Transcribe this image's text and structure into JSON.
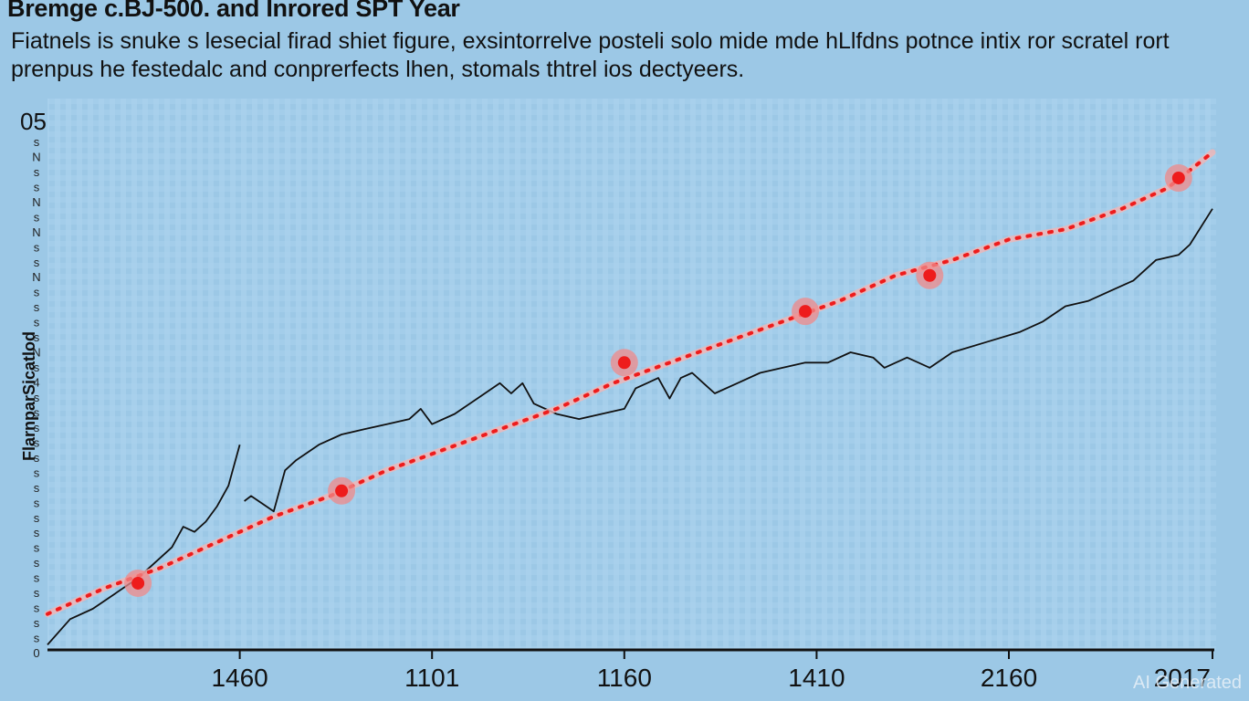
{
  "title": "Bremge c.BJ-500. and Inrored SPT Year",
  "subtitle": "Fiatnels is snuke s lesecial firad shiet figure, exsintorrelve posteli solo mide mde hLlfdns potnce intix ror scratel rort prenpus he festedalc and conprerfects lhen, stomals thtrel ios dectyeers.",
  "watermark": "AI Generated",
  "colors": {
    "background": "#9cc8e6",
    "line": "#111111",
    "trend": "#ee1c1c",
    "halo": "#f08a8a"
  },
  "chart_data": {
    "type": "line",
    "title": "Bremge c.BJ-500. and Inrored SPT Year",
    "ylabel": "FlarnparSicatlod",
    "ytick_top": "05",
    "ytick_glyphs": [
      "s",
      "N",
      "s",
      "s",
      "N",
      "s",
      "N",
      "s",
      "s",
      "N",
      "s",
      "s",
      "s",
      "s",
      "N",
      "s",
      "4",
      "s",
      "s",
      "s",
      "s",
      "s",
      "s",
      "s",
      "s",
      "s",
      "s",
      "s",
      "s",
      "s",
      "s",
      "s",
      "s",
      "s",
      "0"
    ],
    "xticks": [
      {
        "label": "1460",
        "x": 0.14
      },
      {
        "label": "1101",
        "x": 0.31
      },
      {
        "label": "1160",
        "x": 0.48
      },
      {
        "label": "1410",
        "x": 0.65
      },
      {
        "label": "2160",
        "x": 0.82
      },
      {
        "label": "2017",
        "x": 1.0
      }
    ],
    "xlim": [
      -0.03,
      1.0
    ],
    "ylim": [
      0,
      100
    ],
    "grid": true,
    "series": [
      {
        "style": "solid",
        "segments": [
          [
            [
              -0.03,
              1
            ],
            [
              -0.01,
              6
            ],
            [
              0.01,
              8
            ],
            [
              0.03,
              11
            ],
            [
              0.05,
              14
            ],
            [
              0.07,
              18
            ],
            [
              0.08,
              20
            ],
            [
              0.09,
              24
            ],
            [
              0.1,
              23
            ],
            [
              0.11,
              25
            ],
            [
              0.12,
              28
            ],
            [
              0.13,
              32
            ],
            [
              0.14,
              40
            ]
          ],
          [
            [
              0.144,
              29
            ],
            [
              0.15,
              30
            ],
            [
              0.17,
              27
            ],
            [
              0.18,
              35
            ],
            [
              0.19,
              37
            ],
            [
              0.21,
              40
            ],
            [
              0.23,
              42
            ],
            [
              0.25,
              43
            ],
            [
              0.27,
              44
            ],
            [
              0.29,
              45
            ],
            [
              0.3,
              47
            ],
            [
              0.31,
              44
            ],
            [
              0.33,
              46
            ],
            [
              0.35,
              49
            ],
            [
              0.37,
              52
            ],
            [
              0.38,
              50
            ],
            [
              0.39,
              52
            ],
            [
              0.4,
              48
            ],
            [
              0.42,
              46
            ],
            [
              0.44,
              45
            ],
            [
              0.46,
              46
            ],
            [
              0.48,
              47
            ],
            [
              0.49,
              51
            ],
            [
              0.5,
              52
            ],
            [
              0.51,
              53
            ],
            [
              0.52,
              49
            ],
            [
              0.53,
              53
            ],
            [
              0.54,
              54
            ],
            [
              0.55,
              52
            ],
            [
              0.56,
              50
            ],
            [
              0.58,
              52
            ],
            [
              0.6,
              54
            ],
            [
              0.62,
              55
            ],
            [
              0.64,
              56
            ],
            [
              0.66,
              56
            ],
            [
              0.68,
              58
            ],
            [
              0.7,
              57
            ],
            [
              0.71,
              55
            ],
            [
              0.73,
              57
            ],
            [
              0.75,
              55
            ],
            [
              0.77,
              58
            ],
            [
              0.8,
              60
            ],
            [
              0.83,
              62
            ],
            [
              0.85,
              64
            ],
            [
              0.87,
              67
            ],
            [
              0.89,
              68
            ],
            [
              0.91,
              70
            ],
            [
              0.93,
              72
            ],
            [
              0.95,
              76
            ],
            [
              0.97,
              77
            ],
            [
              0.98,
              79
            ],
            [
              1.0,
              86
            ]
          ]
        ]
      },
      {
        "style": "dotted",
        "segments": [
          [
            [
              -0.03,
              7
            ],
            [
              0.02,
              12
            ],
            [
              0.07,
              16
            ],
            [
              0.12,
              21
            ],
            [
              0.17,
              26
            ],
            [
              0.22,
              30
            ],
            [
              0.27,
              35
            ],
            [
              0.32,
              39
            ],
            [
              0.37,
              43
            ],
            [
              0.42,
              47
            ],
            [
              0.47,
              52
            ],
            [
              0.52,
              56
            ],
            [
              0.57,
              60
            ],
            [
              0.62,
              64
            ],
            [
              0.67,
              68
            ],
            [
              0.72,
              73
            ],
            [
              0.77,
              76
            ],
            [
              0.82,
              80
            ],
            [
              0.87,
              82
            ],
            [
              0.92,
              86
            ],
            [
              0.96,
              90
            ],
            [
              1.0,
              97
            ]
          ]
        ]
      }
    ],
    "highlight_points": [
      [
        0.05,
        13
      ],
      [
        0.23,
        31
      ],
      [
        0.48,
        56
      ],
      [
        0.64,
        66
      ],
      [
        0.75,
        73
      ],
      [
        0.97,
        92
      ]
    ]
  }
}
